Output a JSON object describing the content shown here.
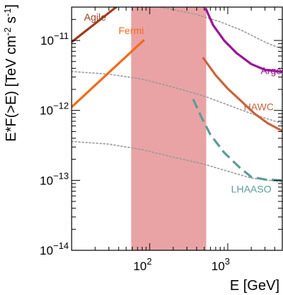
{
  "chart_data": {
    "type": "line",
    "xlabel": "E [GeV]",
    "ylabel": "E*F(>E) [TeV cm",
    "ylabel_exp1": "-2",
    "ylabel_mid": " s",
    "ylabel_exp2": "-1",
    "ylabel_close": "]",
    "x_scale": "log",
    "y_scale": "log",
    "xlim": [
      10,
      5000
    ],
    "ylim": [
      1e-14,
      3e-11
    ],
    "grid": false,
    "legend": "inline labels",
    "xticks": [
      {
        "value": 100,
        "base": "10",
        "exp": "2"
      },
      {
        "value": 1000,
        "base": "10",
        "exp": "3"
      }
    ],
    "yticks": [
      {
        "value": 1e-14,
        "base": "10",
        "exp": "−14"
      },
      {
        "value": 1e-13,
        "base": "10",
        "exp": "−13"
      },
      {
        "value": 1e-12,
        "base": "10",
        "exp": "−12"
      },
      {
        "value": 1e-11,
        "base": "10",
        "exp": "−11"
      }
    ],
    "shaded_band": {
      "x": [
        58,
        530
      ],
      "color": "#e9a3a5"
    },
    "series": [
      {
        "name": "Agile",
        "color": "#9c3c1b",
        "style": "solid",
        "label_at": [
          20,
          2.1e-11
        ],
        "x": [
          10,
          40
        ],
        "y": [
          9.5e-12,
          3.2e-11
        ]
      },
      {
        "name": "Fermi",
        "color": "#f26a1b",
        "style": "solid",
        "label_at": [
          58,
          1.35e-11
        ],
        "x": [
          10,
          85
        ],
        "y": [
          1.12e-12,
          1.02e-11
        ]
      },
      {
        "name": "Argo",
        "color": "#9a1396",
        "style": "solid",
        "label_at": [
          3600,
          3.6e-12
        ],
        "x": [
          520,
          650,
          900,
          1300,
          2000,
          3000,
          5000
        ],
        "y": [
          2.9e-11,
          1.65e-11,
          1e-11,
          6.6e-12,
          4.6e-12,
          3.8e-12,
          3.55e-12
        ]
      },
      {
        "name": "HAWC",
        "color": "#c8643d",
        "style": "solid",
        "label_at": [
          2500,
          1.1e-12
        ],
        "x": [
          480,
          700,
          1000,
          1500,
          2200,
          3300,
          5000
        ],
        "y": [
          5.7e-12,
          3.2e-12,
          2.05e-12,
          1.35e-12,
          9e-13,
          6.5e-13,
          5.1e-13
        ]
      },
      {
        "name": "LHAASO",
        "color": "#5f9a9a",
        "style": "dashed",
        "label_at": [
          2000,
          7.3e-14
        ],
        "x": [
          360,
          460,
          600,
          900,
          1400,
          2000,
          3000,
          5000
        ],
        "y": [
          1.45e-12,
          8e-13,
          4.5e-13,
          2.5e-13,
          1.55e-13,
          1.12e-13,
          1.03e-13,
          1e-13
        ]
      }
    ],
    "reference_curves": [
      {
        "color": "#999999",
        "style": "dotted",
        "x": [
          100,
          200,
          400,
          800,
          1500,
          3000,
          5000
        ],
        "y": [
          3.2e-11,
          2.75e-11,
          2.35e-11,
          1.85e-11,
          1.4e-11,
          9.5e-12,
          7.5e-12
        ]
      },
      {
        "color": "#999999",
        "style": "dotted",
        "x": [
          10,
          30,
          80,
          200,
          500,
          1000,
          2000,
          5000
        ],
        "y": [
          3.6e-12,
          3.3e-12,
          2.8e-12,
          2.15e-12,
          1.6e-12,
          1.2e-12,
          9e-13,
          6.5e-13
        ]
      },
      {
        "color": "#999999",
        "style": "dotted",
        "x": [
          10,
          30,
          80,
          200,
          500,
          1000,
          2000,
          5000
        ],
        "y": [
          3.6e-13,
          3.3e-13,
          2.75e-13,
          2.15e-13,
          1.7e-13,
          1.35e-13,
          1.08e-13,
          9.5e-14
        ]
      }
    ]
  }
}
